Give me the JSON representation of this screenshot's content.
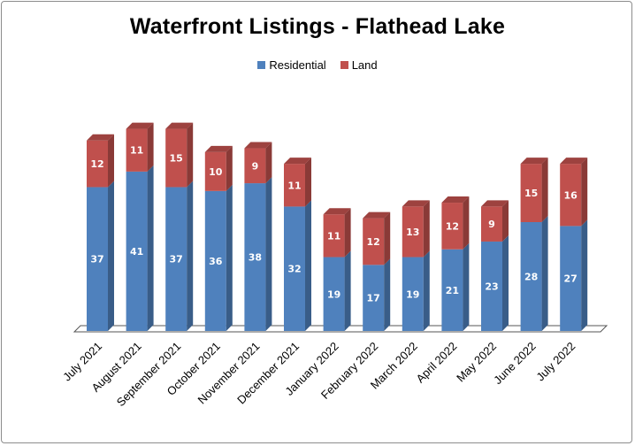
{
  "chart_data": {
    "type": "bar",
    "stacked": true,
    "title": "Waterfront Listings - Flathead Lake",
    "categories": [
      "July 2021",
      "August 2021",
      "September 2021",
      "October 2021",
      "November 2021",
      "December 2021",
      "January 2022",
      "February 2022",
      "March 2022",
      "April 2022",
      "May 2022",
      "June 2022",
      "July 2022"
    ],
    "series": [
      {
        "name": "Residential",
        "color": "#4f81bd",
        "values": [
          37,
          41,
          37,
          36,
          38,
          32,
          19,
          17,
          19,
          21,
          23,
          28,
          27
        ]
      },
      {
        "name": "Land",
        "color": "#c0504d",
        "values": [
          12,
          11,
          15,
          10,
          9,
          11,
          11,
          12,
          13,
          12,
          9,
          15,
          16
        ]
      }
    ],
    "xlabel": "",
    "ylabel": "",
    "ylim": [
      0,
      56
    ],
    "grid": false,
    "legend": "top-center"
  }
}
